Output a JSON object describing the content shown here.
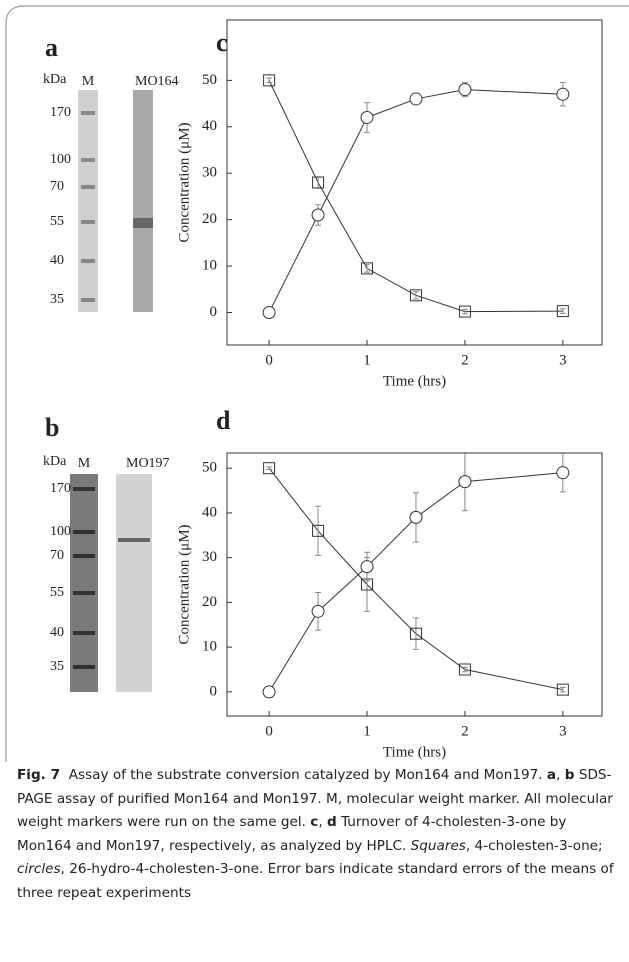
{
  "chart_data": [
    {
      "type": "line",
      "panel": "c",
      "xlabel": "Time (hrs)",
      "ylabel": "Concentration (μM)",
      "xlim": [
        -0.43,
        3.4
      ],
      "ylim": [
        -7,
        63
      ],
      "xticks": [
        0,
        1,
        2,
        3
      ],
      "yticks": [
        0,
        10,
        20,
        30,
        40,
        50
      ],
      "x": [
        0,
        0.5,
        1,
        1.5,
        2,
        3
      ],
      "series": [
        {
          "marker": "square",
          "color": "#333333",
          "values": [
            50,
            28,
            9.5,
            3.7,
            0.2,
            0.3
          ],
          "errors": [
            0.5,
            1.2,
            0.8,
            0.8,
            0.5,
            0.5
          ]
        },
        {
          "marker": "circle",
          "color": "#333333",
          "values": [
            0,
            21,
            42,
            46,
            48,
            47
          ],
          "errors": [
            0,
            2.2,
            3.2,
            1,
            1.5,
            2.5
          ]
        }
      ]
    },
    {
      "type": "line",
      "panel": "d",
      "xlabel": "Time (hrs)",
      "ylabel": "Concentration (μM)",
      "xlim": [
        -0.43,
        3.4
      ],
      "ylim": [
        -5.4,
        53.4
      ],
      "xticks": [
        0,
        1,
        2,
        3
      ],
      "yticks": [
        0,
        10,
        20,
        30,
        40,
        50
      ],
      "x": [
        0,
        0.5,
        1,
        1.5,
        2,
        3
      ],
      "series": [
        {
          "marker": "square",
          "color": "#333333",
          "values": [
            50,
            36,
            24,
            13,
            5,
            0.5
          ],
          "errors": [
            0.3,
            5.5,
            6,
            3.5,
            0.5,
            0.5
          ]
        },
        {
          "marker": "circle",
          "color": "#333333",
          "values": [
            0,
            18,
            28,
            39,
            47,
            49
          ],
          "errors": [
            0,
            4.2,
            3.2,
            5.5,
            6.5,
            4.3
          ]
        }
      ]
    }
  ],
  "gels": [
    {
      "panel": "a",
      "unit": "kDa",
      "lanes": [
        "M",
        "MO164"
      ],
      "markers": [
        170,
        100,
        70,
        55,
        40,
        35
      ]
    },
    {
      "panel": "b",
      "unit": "kDa",
      "lanes": [
        "M",
        "MO197"
      ],
      "markers": [
        170,
        100,
        70,
        55,
        40,
        35
      ]
    }
  ],
  "caption": {
    "label": "Fig. 7",
    "parts": [
      "Assay of the substrate conversion catalyzed by Mon164 and Mon197. ",
      "a",
      ", ",
      "b",
      " SDS-PAGE assay of purified Mon164 and Mon197. M, molecular weight marker. All molecular weight markers were run on the same gel. ",
      "c",
      ", ",
      "d",
      " Turnover of 4-cholesten-3-one by Mon164 and Mon197, respectively, as analyzed by HPLC. ",
      "Squares",
      ", 4-cholesten-3-one; ",
      "circles",
      ", 26-hydro-4-cholesten-3-one. Error bars indicate standard errors of the means of three repeat experiments"
    ]
  }
}
